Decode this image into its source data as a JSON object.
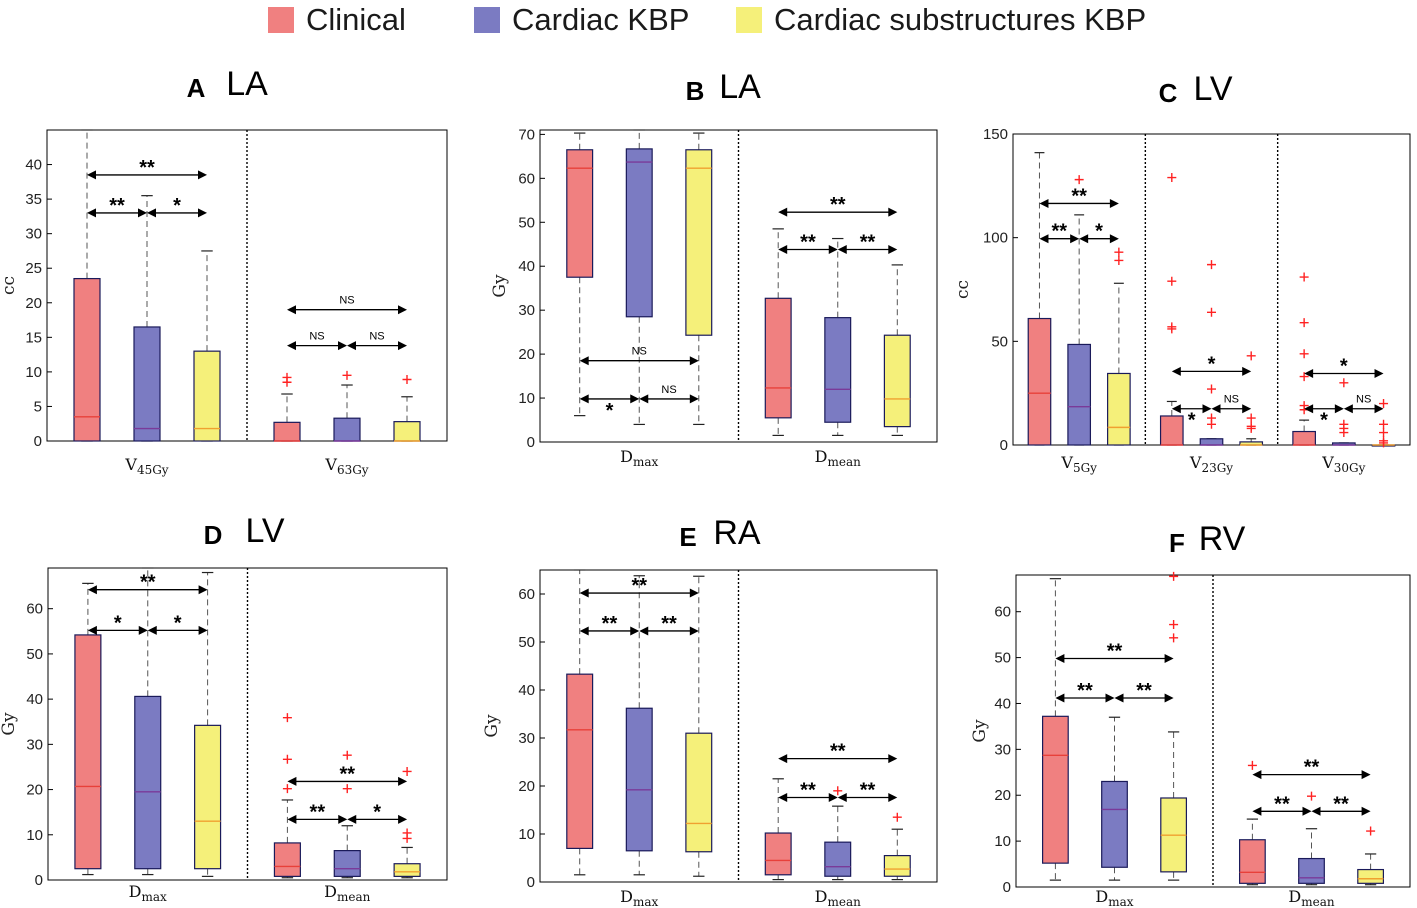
{
  "legend": {
    "items": [
      {
        "label": "Clinical",
        "color": "#f08080"
      },
      {
        "label": "Cardiac KBP",
        "color": "#7b7bc2"
      },
      {
        "label": "Cardiac substructures  KBP",
        "color": "#f5f07a"
      }
    ]
  },
  "style": {
    "box_colors": [
      "#f08080",
      "#7b7bc2",
      "#f5f07a"
    ],
    "median_colors": [
      "#e8403a",
      "#7a3a99",
      "#f0a030"
    ],
    "outlier_color": "#ff2222"
  },
  "chart_data": [
    {
      "type": "boxplot",
      "panel": "A",
      "title": "LA",
      "ylabel": "cc",
      "ylim": [
        0,
        45
      ],
      "yticks": [
        0,
        5,
        10,
        15,
        20,
        25,
        30,
        35,
        40
      ],
      "groups": [
        {
          "label": "V",
          "sub": "45Gy",
          "boxes": [
            {
              "min": 0,
              "q1": 0,
              "median": 3.5,
              "q3": 23.5,
              "max": 45,
              "outliers": []
            },
            {
              "min": 0,
              "q1": 0,
              "median": 1.8,
              "q3": 16.5,
              "max": 35.5,
              "outliers": []
            },
            {
              "min": 0,
              "q1": 0,
              "median": 1.8,
              "q3": 13,
              "max": 27.5,
              "outliers": []
            }
          ],
          "sig": [
            {
              "from": 0,
              "to": 2,
              "label": "**",
              "y": 38.5
            },
            {
              "from": 0,
              "to": 1,
              "label": "**",
              "y": 33
            },
            {
              "from": 1,
              "to": 2,
              "label": "*",
              "y": 33
            }
          ]
        },
        {
          "label": "V",
          "sub": "63Gy",
          "boxes": [
            {
              "min": 0,
              "q1": 0,
              "median": 0,
              "q3": 2.7,
              "max": 6.8,
              "outliers": [
                8.5,
                9.2
              ]
            },
            {
              "min": 0,
              "q1": 0,
              "median": 0,
              "q3": 3.3,
              "max": 8.1,
              "outliers": [
                9.5
              ]
            },
            {
              "min": 0,
              "q1": 0,
              "median": 0,
              "q3": 2.8,
              "max": 6.4,
              "outliers": [
                8.9
              ]
            }
          ],
          "sig": [
            {
              "from": 0,
              "to": 2,
              "label": "NS",
              "y": 19
            },
            {
              "from": 0,
              "to": 1,
              "label": "NS",
              "y": 13.8
            },
            {
              "from": 1,
              "to": 2,
              "label": "NS",
              "y": 13.8
            }
          ]
        }
      ]
    },
    {
      "type": "boxplot",
      "panel": "B",
      "title": "LA",
      "ylabel": "Gy",
      "ylim": [
        0,
        71
      ],
      "yticks": [
        0,
        10,
        20,
        30,
        40,
        50,
        60,
        70
      ],
      "groups": [
        {
          "label": "D",
          "sub": "max",
          "boxes": [
            {
              "min": 6,
              "q1": 37.5,
              "median": 62.3,
              "q3": 66.5,
              "max": 70.3,
              "outliers": []
            },
            {
              "min": 4,
              "q1": 28.5,
              "median": 63.7,
              "q3": 66.7,
              "max": 71,
              "outliers": []
            },
            {
              "min": 4,
              "q1": 24.3,
              "median": 62.3,
              "q3": 66.5,
              "max": 70.3,
              "outliers": []
            }
          ],
          "sig": [
            {
              "from": 0,
              "to": 2,
              "label": "NS",
              "y": 18.5
            },
            {
              "from": 0,
              "to": 1,
              "label": "*",
              "y": 9.8
            },
            {
              "from": 1,
              "to": 2,
              "label": "NS",
              "y": 9.8
            }
          ]
        },
        {
          "label": "D",
          "sub": "mean",
          "boxes": [
            {
              "min": 1.5,
              "q1": 5.5,
              "median": 12.3,
              "q3": 32.7,
              "max": 48.5,
              "outliers": []
            },
            {
              "min": 1.5,
              "q1": 4.5,
              "median": 12,
              "q3": 28.3,
              "max": 46.3,
              "outliers": []
            },
            {
              "min": 1.5,
              "q1": 3.5,
              "median": 9.8,
              "q3": 24.3,
              "max": 40.3,
              "outliers": []
            }
          ],
          "sig": [
            {
              "from": 0,
              "to": 2,
              "label": "**",
              "y": 52.3
            },
            {
              "from": 0,
              "to": 1,
              "label": "**",
              "y": 43.8
            },
            {
              "from": 1,
              "to": 2,
              "label": "**",
              "y": 43.8
            }
          ]
        }
      ]
    },
    {
      "type": "boxplot",
      "panel": "C",
      "title": "LV",
      "ylabel": "cc",
      "ylim": [
        0,
        150
      ],
      "yticks": [
        0,
        50,
        100,
        150
      ],
      "groups": [
        {
          "label": "V",
          "sub": "5Gy",
          "boxes": [
            {
              "min": 0,
              "q1": 0,
              "median": 25,
              "q3": 61,
              "max": 141,
              "outliers": []
            },
            {
              "min": 0,
              "q1": 0,
              "median": 18.5,
              "q3": 48.5,
              "max": 111,
              "outliers": [
                128
              ]
            },
            {
              "min": 0,
              "q1": 0,
              "median": 8.5,
              "q3": 34.5,
              "max": 78,
              "outliers": [
                89,
                93
              ]
            }
          ],
          "sig": [
            {
              "from": 0,
              "to": 2,
              "label": "**",
              "y": 116.5
            },
            {
              "from": 0,
              "to": 1,
              "label": "**",
              "y": 99.5
            },
            {
              "from": 1,
              "to": 2,
              "label": "*",
              "y": 99.5
            }
          ]
        },
        {
          "label": "V",
          "sub": "23Gy",
          "boxes": [
            {
              "min": 0,
              "q1": 0,
              "median": 0,
              "q3": 14,
              "max": 21,
              "outliers": [
                129,
                79,
                57,
                56
              ]
            },
            {
              "min": 0,
              "q1": 0,
              "median": 0,
              "q3": 3,
              "max": 3,
              "outliers": [
                87,
                64,
                27,
                13,
                10
              ]
            },
            {
              "min": 0,
              "q1": 0,
              "median": 0,
              "q3": 1.5,
              "max": 3,
              "outliers": [
                43,
                13,
                9,
                8
              ]
            }
          ],
          "sig": [
            {
              "from": 0,
              "to": 2,
              "label": "*",
              "y": 35.5
            },
            {
              "from": 0,
              "to": 1,
              "label": "*",
              "y": 17.5
            },
            {
              "from": 1,
              "to": 2,
              "label": "NS",
              "y": 17.5
            }
          ]
        },
        {
          "label": "V",
          "sub": "30Gy",
          "boxes": [
            {
              "min": 0,
              "q1": 0,
              "median": 0,
              "q3": 6.5,
              "max": 12,
              "outliers": [
                81,
                59,
                44,
                33,
                19,
                17
              ]
            },
            {
              "min": 0,
              "q1": 0,
              "median": 0,
              "q3": 1,
              "max": 1,
              "outliers": [
                30,
                10,
                8,
                6
              ]
            },
            {
              "min": 0,
              "q1": 0,
              "median": 0,
              "q3": 0,
              "max": 0,
              "outliers": [
                20,
                10,
                6,
                2,
                1
              ]
            }
          ],
          "sig": [
            {
              "from": 0,
              "to": 2,
              "label": "*",
              "y": 34.5
            },
            {
              "from": 0,
              "to": 1,
              "label": "*",
              "y": 17.5
            },
            {
              "from": 1,
              "to": 2,
              "label": "NS",
              "y": 17.5
            }
          ]
        }
      ]
    },
    {
      "type": "boxplot",
      "panel": "D",
      "title": "LV",
      "ylabel": "Gy",
      "ylim": [
        0,
        69
      ],
      "yticks": [
        0,
        10,
        20,
        30,
        40,
        50,
        60
      ],
      "groups": [
        {
          "label": "D",
          "sub": "max",
          "boxes": [
            {
              "min": 1.2,
              "q1": 2.5,
              "median": 20.7,
              "q3": 54.2,
              "max": 65.6,
              "outliers": []
            },
            {
              "min": 1.2,
              "q1": 2.5,
              "median": 19.5,
              "q3": 40.6,
              "max": 69,
              "outliers": []
            },
            {
              "min": 0.8,
              "q1": 2.5,
              "median": 13,
              "q3": 34.2,
              "max": 68,
              "outliers": []
            }
          ],
          "sig": [
            {
              "from": 0,
              "to": 2,
              "label": "**",
              "y": 64.2
            },
            {
              "from": 0,
              "to": 1,
              "label": "*",
              "y": 55.2
            },
            {
              "from": 1,
              "to": 2,
              "label": "*",
              "y": 55.2
            }
          ]
        },
        {
          "label": "D",
          "sub": "mean",
          "boxes": [
            {
              "min": 0.5,
              "q1": 0.8,
              "median": 3,
              "q3": 8.2,
              "max": 17.7,
              "outliers": [
                35.9,
                26.7,
                20.2
              ]
            },
            {
              "min": 0.5,
              "q1": 0.8,
              "median": 2.5,
              "q3": 6.5,
              "max": 12,
              "outliers": [
                27.6,
                20.2
              ]
            },
            {
              "min": 0.5,
              "q1": 0.8,
              "median": 1.8,
              "q3": 3.6,
              "max": 7.2,
              "outliers": [
                24,
                10.4,
                9.2
              ]
            }
          ],
          "sig": [
            {
              "from": 0,
              "to": 2,
              "label": "**",
              "y": 21.8
            },
            {
              "from": 0,
              "to": 1,
              "label": "**",
              "y": 13.4
            },
            {
              "from": 1,
              "to": 2,
              "label": "*",
              "y": 13.4
            }
          ]
        }
      ]
    },
    {
      "type": "boxplot",
      "panel": "E",
      "title": "RA",
      "ylabel": "Gy",
      "ylim": [
        0,
        65
      ],
      "yticks": [
        0,
        10,
        20,
        30,
        40,
        50,
        60
      ],
      "groups": [
        {
          "label": "D",
          "sub": "max",
          "boxes": [
            {
              "min": 1.5,
              "q1": 7,
              "median": 31.7,
              "q3": 43.3,
              "max": 65,
              "outliers": []
            },
            {
              "min": 1.5,
              "q1": 6.5,
              "median": 19.2,
              "q3": 36.2,
              "max": 63.8,
              "outliers": []
            },
            {
              "min": 1.2,
              "q1": 6.3,
              "median": 12.2,
              "q3": 31,
              "max": 63.7,
              "outliers": []
            }
          ],
          "sig": [
            {
              "from": 0,
              "to": 2,
              "label": "**",
              "y": 60.2
            },
            {
              "from": 0,
              "to": 1,
              "label": "**",
              "y": 52.3
            },
            {
              "from": 1,
              "to": 2,
              "label": "**",
              "y": 52.3
            }
          ]
        },
        {
          "label": "D",
          "sub": "mean",
          "boxes": [
            {
              "min": 0.5,
              "q1": 1.5,
              "median": 4.5,
              "q3": 10.2,
              "max": 21.5,
              "outliers": []
            },
            {
              "min": 0.5,
              "q1": 1.2,
              "median": 3.2,
              "q3": 8.3,
              "max": 15.8,
              "outliers": [
                19
              ]
            },
            {
              "min": 0.5,
              "q1": 1.2,
              "median": 2.7,
              "q3": 5.5,
              "max": 11,
              "outliers": [
                13.5
              ]
            }
          ],
          "sig": [
            {
              "from": 0,
              "to": 2,
              "label": "**",
              "y": 25.7
            },
            {
              "from": 0,
              "to": 1,
              "label": "**",
              "y": 17.6
            },
            {
              "from": 1,
              "to": 2,
              "label": "**",
              "y": 17.6
            }
          ]
        }
      ]
    },
    {
      "type": "boxplot",
      "panel": "F",
      "title": "RV",
      "ylabel": "Gy",
      "ylim": [
        0,
        68
      ],
      "yticks": [
        0,
        10,
        20,
        30,
        40,
        50,
        60
      ],
      "groups": [
        {
          "label": "D",
          "sub": "max",
          "boxes": [
            {
              "min": 1.5,
              "q1": 5.2,
              "median": 28.7,
              "q3": 37.2,
              "max": 67.2,
              "outliers": []
            },
            {
              "min": 1.5,
              "q1": 4.3,
              "median": 16.9,
              "q3": 23,
              "max": 37,
              "outliers": []
            },
            {
              "min": 1.5,
              "q1": 3.3,
              "median": 11.3,
              "q3": 19.4,
              "max": 33.8,
              "outliers": [
                54.3,
                57.2,
                67.7
              ]
            }
          ],
          "sig": [
            {
              "from": 0,
              "to": 2,
              "label": "**",
              "y": 49.8
            },
            {
              "from": 0,
              "to": 1,
              "label": "**",
              "y": 41.2
            },
            {
              "from": 1,
              "to": 2,
              "label": "**",
              "y": 41.2
            }
          ]
        },
        {
          "label": "D",
          "sub": "mean",
          "boxes": [
            {
              "min": 0.5,
              "q1": 0.8,
              "median": 3.2,
              "q3": 10.3,
              "max": 14.8,
              "outliers": [
                26.5
              ]
            },
            {
              "min": 0.5,
              "q1": 0.8,
              "median": 2,
              "q3": 6.2,
              "max": 12.7,
              "outliers": [
                19.8
              ]
            },
            {
              "min": 0.5,
              "q1": 0.8,
              "median": 1.8,
              "q3": 3.8,
              "max": 7.2,
              "outliers": [
                12.2
              ]
            }
          ],
          "sig": [
            {
              "from": 0,
              "to": 2,
              "label": "**",
              "y": 24.5
            },
            {
              "from": 0,
              "to": 1,
              "label": "**",
              "y": 16.5
            },
            {
              "from": 1,
              "to": 2,
              "label": "**",
              "y": 16.5
            }
          ]
        }
      ]
    }
  ]
}
